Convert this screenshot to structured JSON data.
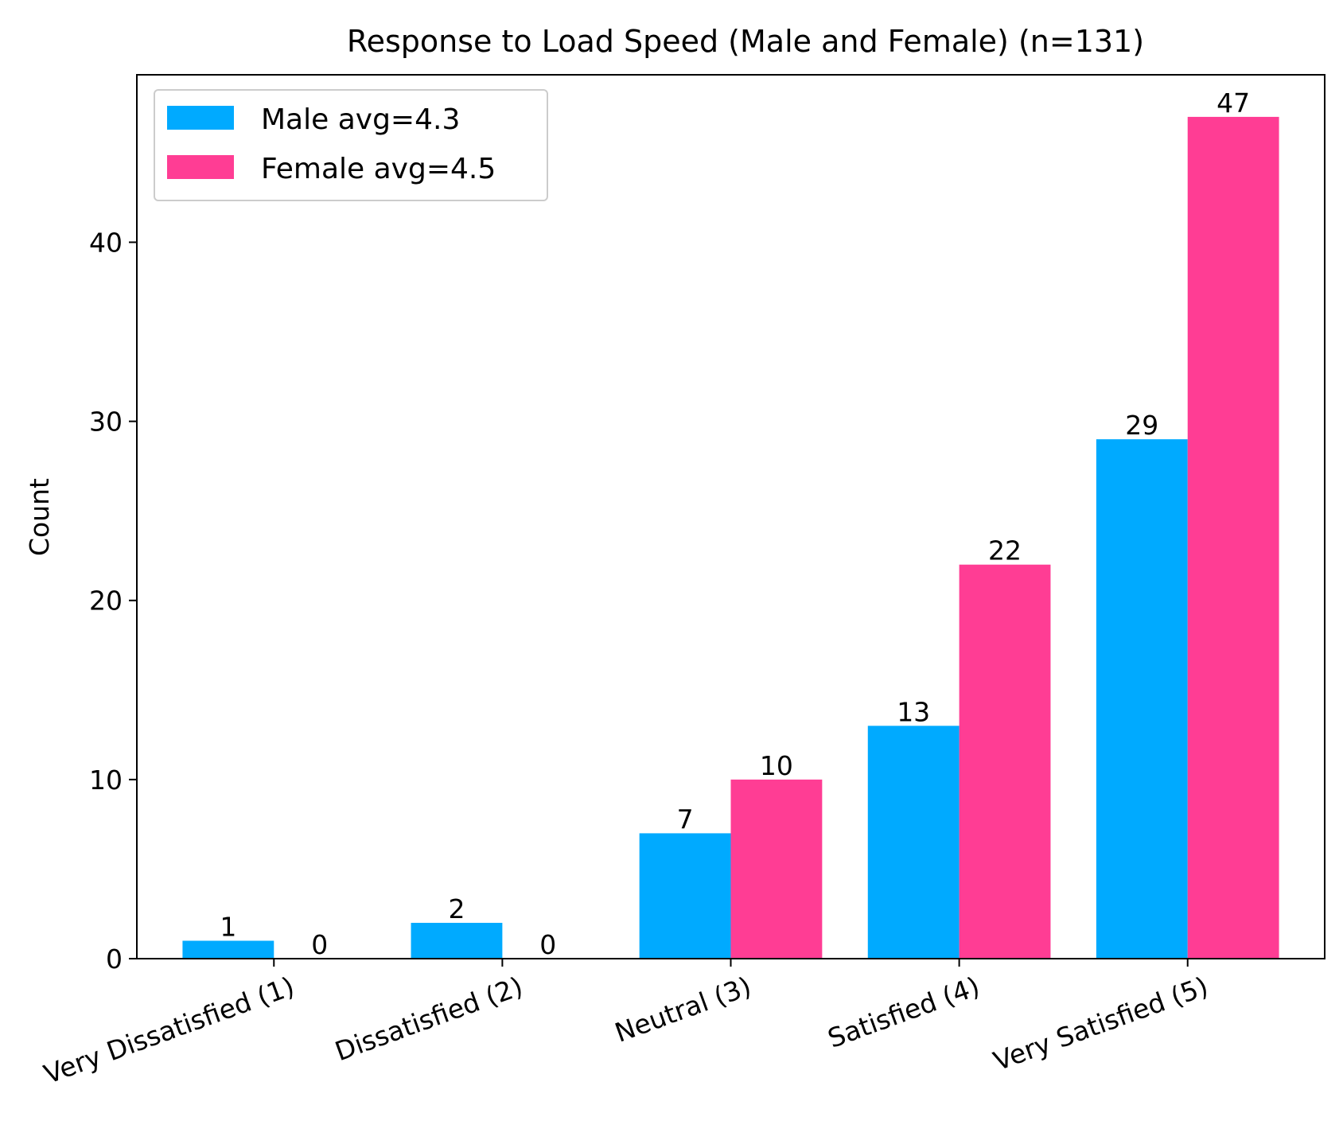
{
  "chart_data": {
    "type": "bar",
    "title": "Response to Load Speed (Male and Female) (n=131)",
    "xlabel": "",
    "ylabel": "Count",
    "categories": [
      "Very Dissatisfied (1)",
      "Dissatisfied (2)",
      "Neutral (3)",
      "Satisfied (4)",
      "Very Satisfied (5)"
    ],
    "series": [
      {
        "name": "Male avg=4.3",
        "color": "#00AAFF",
        "values": [
          1,
          2,
          7,
          13,
          29
        ]
      },
      {
        "name": "Female avg=4.5",
        "color": "#FF3D94",
        "values": [
          0,
          0,
          10,
          22,
          47
        ]
      }
    ],
    "ylim": [
      0,
      49.35
    ],
    "yticks": [
      0,
      10,
      20,
      30,
      40
    ],
    "legend_position": "upper left",
    "grid": false
  }
}
